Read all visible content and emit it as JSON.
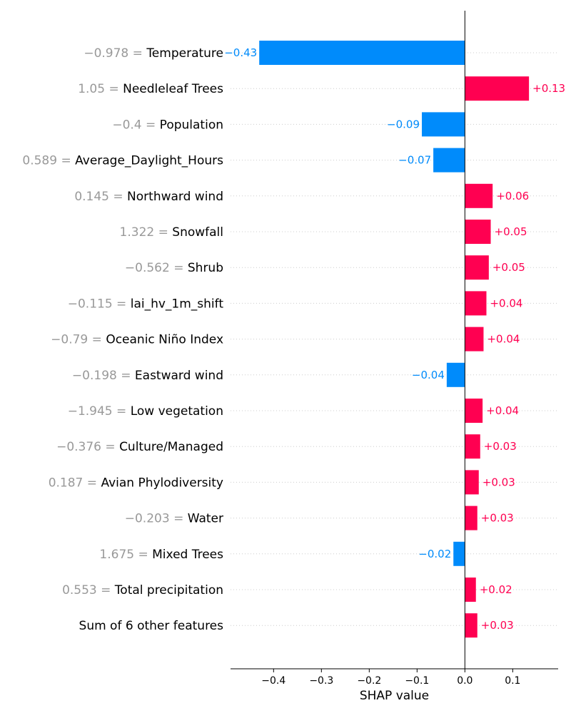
{
  "chart_data": {
    "type": "bar",
    "orientation": "horizontal",
    "xlabel": "SHAP value",
    "xlim": [
      -0.49,
      0.195
    ],
    "xticks": [
      "-0.4",
      "-0.3",
      "-0.2",
      "-0.1",
      "0.0",
      "0.1"
    ],
    "tick_values": [
      -0.4,
      -0.3,
      -0.2,
      -0.1,
      0.0,
      0.1
    ],
    "grid": "dotted-row-lines",
    "colors": {
      "positive": "#ff0051",
      "negative": "#008bfb",
      "feature_value": "#999999",
      "feature_name": "#000000"
    },
    "features": [
      {
        "value": "−0.978",
        "name": "Temperature",
        "shap": -0.43,
        "label": "−0.43"
      },
      {
        "value": "1.05",
        "name": "Needleleaf Trees",
        "shap": 0.134,
        "label": "+0.13"
      },
      {
        "value": "−0.4",
        "name": "Population",
        "shap": -0.09,
        "label": "−0.09"
      },
      {
        "value": "0.589",
        "name": "Average_Daylight_Hours",
        "shap": -0.066,
        "label": "−0.07"
      },
      {
        "value": "0.145",
        "name": "Northward wind",
        "shap": 0.058,
        "label": "+0.06"
      },
      {
        "value": "1.322",
        "name": "Snowfall",
        "shap": 0.054,
        "label": "+0.05"
      },
      {
        "value": "−0.562",
        "name": "Shrub",
        "shap": 0.05,
        "label": "+0.05"
      },
      {
        "value": "−0.115",
        "name": "lai_hv_1m_shift",
        "shap": 0.045,
        "label": "+0.04"
      },
      {
        "value": "−0.79",
        "name": "Oceanic Niño Index",
        "shap": 0.039,
        "label": "+0.04"
      },
      {
        "value": "−0.198",
        "name": "Eastward wind",
        "shap": -0.038,
        "label": "−0.04"
      },
      {
        "value": "−1.945",
        "name": "Low vegetation",
        "shap": 0.037,
        "label": "+0.04"
      },
      {
        "value": "−0.376",
        "name": "Culture/Managed",
        "shap": 0.032,
        "label": "+0.03"
      },
      {
        "value": "0.187",
        "name": "Avian Phylodiversity",
        "shap": 0.029,
        "label": "+0.03"
      },
      {
        "value": "−0.203",
        "name": "Water",
        "shap": 0.026,
        "label": "+0.03"
      },
      {
        "value": "1.675",
        "name": "Mixed Trees",
        "shap": -0.024,
        "label": "−0.02"
      },
      {
        "value": "0.553",
        "name": "Total precipitation",
        "shap": 0.023,
        "label": "+0.02"
      },
      {
        "value": "",
        "name": "Sum of 6 other features",
        "shap": 0.026,
        "label": "+0.03"
      }
    ]
  }
}
